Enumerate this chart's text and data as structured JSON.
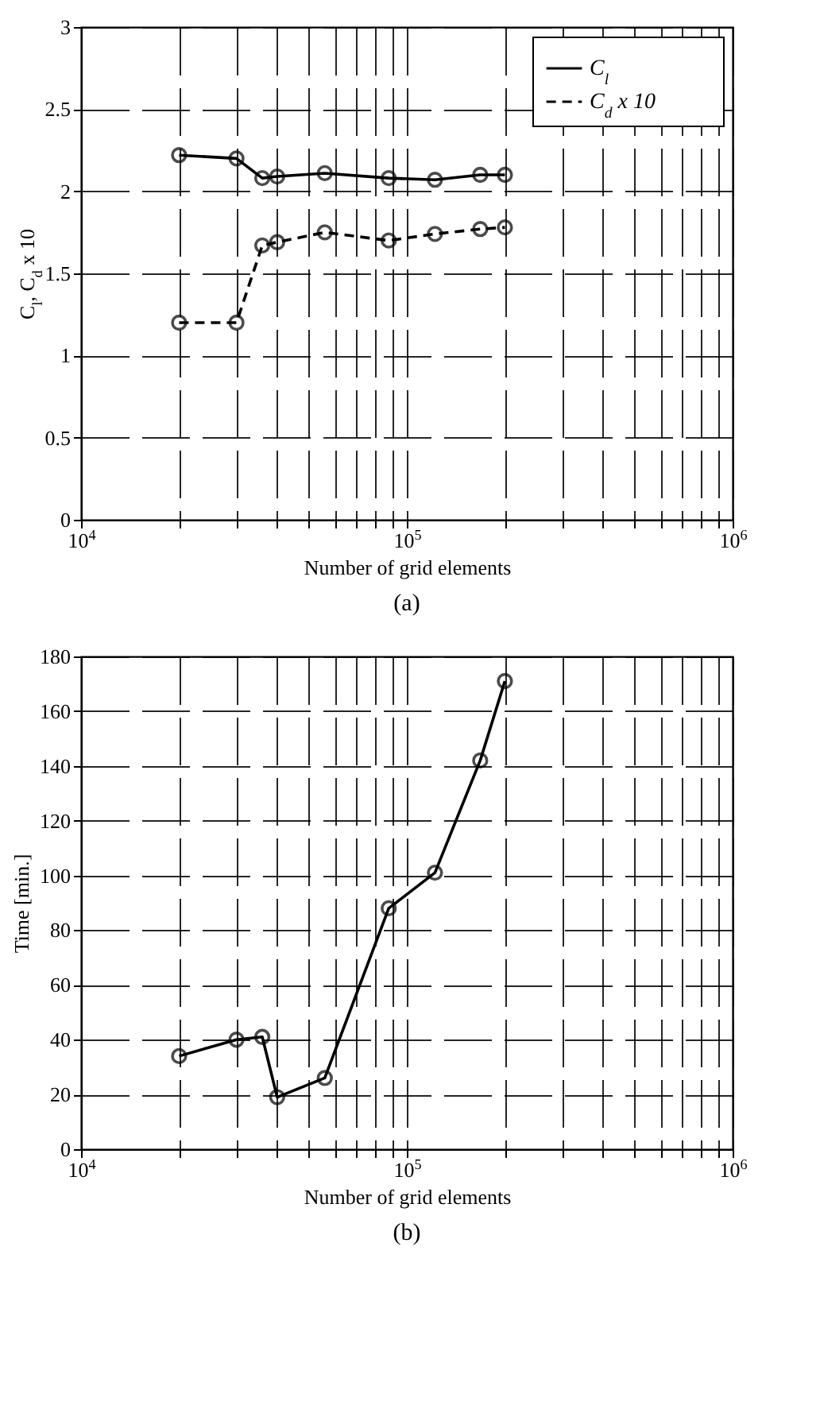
{
  "chart_data": [
    {
      "type": "line",
      "xlabel": "Number of grid elements",
      "ylabel": "C$_{l}$, C$_{d}$ x 10",
      "annotations": [
        "(a)"
      ],
      "x": [
        20000,
        30000,
        36000,
        40000,
        56000,
        88000,
        122000,
        168000,
        200000
      ],
      "series": [
        {
          "name": "C$_{l}$",
          "color": "#000000",
          "line_style": "solid",
          "values": [
            2.22,
            2.2,
            2.08,
            2.09,
            2.11,
            2.08,
            2.07,
            2.1,
            2.1
          ]
        },
        {
          "name": "C$_{d}$ x 10",
          "color": "#000000",
          "line_style": "dashed",
          "values": [
            1.2,
            1.2,
            1.67,
            1.69,
            1.75,
            1.7,
            1.74,
            1.77,
            1.78
          ]
        }
      ],
      "xlim": [
        10000,
        1000000
      ],
      "ylim": [
        0,
        3
      ],
      "log": "x",
      "grid": true,
      "marker": "circle",
      "legend": "top right",
      "xticks": [
        {
          "value": 10000,
          "label": "10$^{4}$"
        },
        {
          "value": 20000,
          "label": null
        },
        {
          "value": 30000,
          "label": null
        },
        {
          "value": 40000,
          "label": null
        },
        {
          "value": 50000,
          "label": null
        },
        {
          "value": 60000,
          "label": null
        },
        {
          "value": 70000,
          "label": null
        },
        {
          "value": 80000,
          "label": null
        },
        {
          "value": 90000,
          "label": null
        },
        {
          "value": 100000,
          "label": "10$^{5}$"
        },
        {
          "value": 200000,
          "label": null
        },
        {
          "value": 300000,
          "label": null
        },
        {
          "value": 400000,
          "label": null
        },
        {
          "value": 500000,
          "label": null
        },
        {
          "value": 600000,
          "label": null
        },
        {
          "value": 700000,
          "label": null
        },
        {
          "value": 800000,
          "label": null
        },
        {
          "value": 900000,
          "label": null
        },
        {
          "value": 1000000,
          "label": "10$^{6}$"
        }
      ],
      "yticks": [
        0,
        0.5,
        1,
        1.5,
        2,
        2.5,
        3
      ]
    },
    {
      "type": "line",
      "xlabel": "Number of grid elements",
      "ylabel": "Time [min.]",
      "annotations": [
        "(b)"
      ],
      "x": [
        20000,
        30000,
        36000,
        40000,
        56000,
        88000,
        122000,
        168000,
        200000
      ],
      "series": [
        {
          "color": "#000000",
          "line_style": "solid",
          "values": [
            34,
            40,
            41,
            19,
            26,
            88,
            101,
            142,
            171
          ]
        }
      ],
      "xlim": [
        10000,
        1000000
      ],
      "ylim": [
        0,
        180
      ],
      "log": "x",
      "grid": true,
      "marker": "circle",
      "xticks": [
        {
          "value": 10000,
          "label": "10$^{4}$"
        },
        {
          "value": 20000,
          "label": null
        },
        {
          "value": 30000,
          "label": null
        },
        {
          "value": 40000,
          "label": null
        },
        {
          "value": 50000,
          "label": null
        },
        {
          "value": 60000,
          "label": null
        },
        {
          "value": 70000,
          "label": null
        },
        {
          "value": 80000,
          "label": null
        },
        {
          "value": 90000,
          "label": null
        },
        {
          "value": 100000,
          "label": "10$^{5}$"
        },
        {
          "value": 200000,
          "label": null
        },
        {
          "value": 300000,
          "label": null
        },
        {
          "value": 400000,
          "label": null
        },
        {
          "value": 500000,
          "label": null
        },
        {
          "value": 600000,
          "label": null
        },
        {
          "value": 700000,
          "label": null
        },
        {
          "value": 800000,
          "label": null
        },
        {
          "value": 900000,
          "label": null
        },
        {
          "value": 1000000,
          "label": "10$^{6}$"
        }
      ],
      "yticks": [
        0,
        20,
        40,
        60,
        80,
        100,
        120,
        140,
        160,
        180
      ]
    }
  ]
}
